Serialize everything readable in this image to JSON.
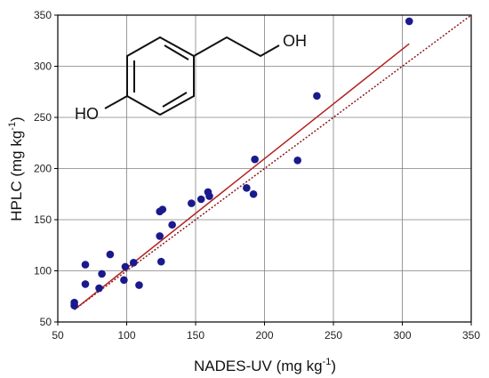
{
  "chart_data": {
    "type": "scatter",
    "xlabel": "NADES-UV (mg kg",
    "ylabel": "HPLC (mg kg",
    "unit_exponent": "-1",
    "xlim": [
      50,
      350
    ],
    "ylim": [
      50,
      350
    ],
    "x_ticks": [
      50,
      100,
      150,
      200,
      250,
      300,
      350
    ],
    "y_ticks": [
      50,
      100,
      150,
      200,
      250,
      300,
      350
    ],
    "grid": true,
    "colors": {
      "points": "#1a1a8c",
      "fit_line": "#b22222",
      "identity_line": "#8b1a1a",
      "grid": "#808080"
    },
    "points": {
      "x": [
        62,
        62,
        70,
        70,
        80,
        82,
        88,
        98,
        99,
        105,
        109,
        124,
        124,
        125,
        126,
        133,
        147,
        154,
        159,
        160,
        187,
        192,
        193,
        224,
        238,
        305
      ],
      "y": [
        69,
        66,
        106,
        87,
        83,
        97,
        116,
        91,
        104,
        108,
        86,
        134,
        158,
        109,
        160,
        145,
        166,
        170,
        177,
        173,
        181,
        175,
        209,
        208,
        271,
        344
      ]
    },
    "fit_line": {
      "x": [
        62,
        305
      ],
      "y": [
        62,
        322
      ]
    },
    "identity_line": {
      "x": [
        62,
        350
      ],
      "y": [
        62,
        350
      ]
    },
    "molecule_labels": {
      "oh": "OH",
      "ho": "HO"
    }
  }
}
